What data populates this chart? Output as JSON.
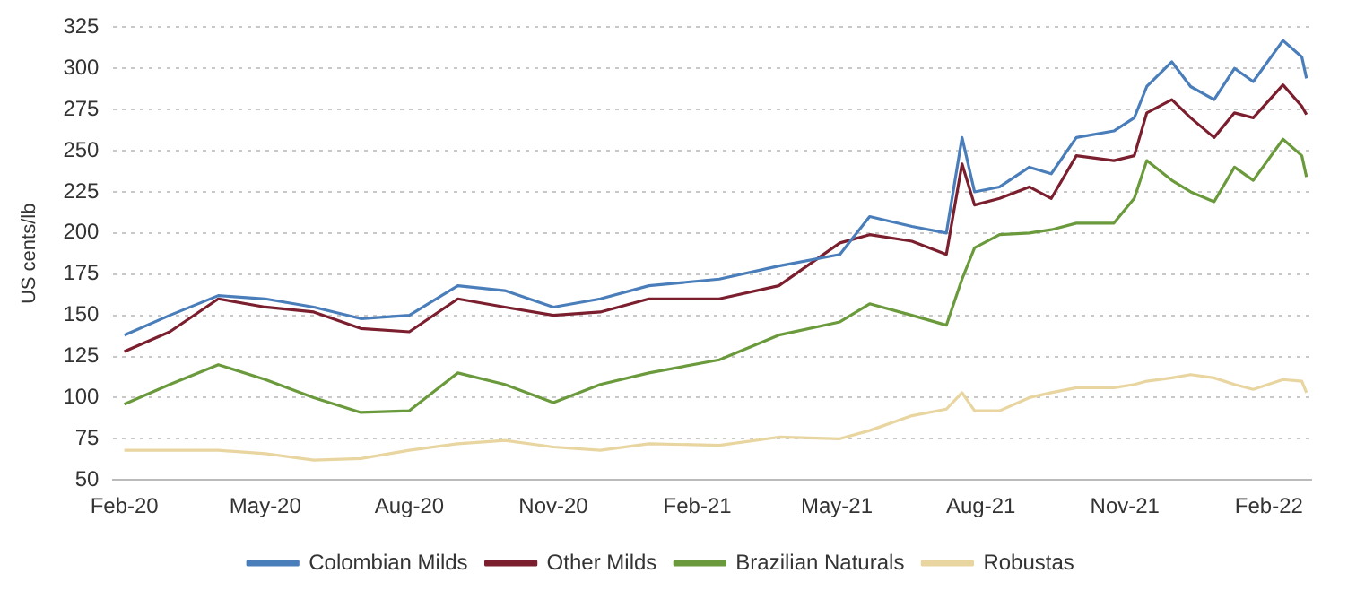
{
  "chart_data": {
    "type": "line",
    "ylabel": "US cents/lb",
    "legend": "bottom",
    "grid": "y",
    "marker": "none",
    "line_style": "solid",
    "x": [
      "2020-02-01",
      "2020-03-01",
      "2020-04-01",
      "2020-05-01",
      "2020-06-01",
      "2020-07-01",
      "2020-08-01",
      "2020-09-01",
      "2020-10-01",
      "2020-11-01",
      "2020-12-01",
      "2021-01-01",
      "2021-02-15",
      "2021-03-25",
      "2021-05-03",
      "2021-05-22",
      "2021-06-18",
      "2021-07-10",
      "2021-07-20",
      "2021-07-28",
      "2021-08-13",
      "2021-09-01",
      "2021-09-15",
      "2021-10-01",
      "2021-10-25",
      "2021-11-07",
      "2021-11-15",
      "2021-12-01",
      "2021-12-13",
      "2021-12-28",
      "2022-01-10",
      "2022-01-22",
      "2022-02-10",
      "2022-02-22",
      "2022-02-25"
    ],
    "xlim": [
      "2020-01-25",
      "2022-02-28"
    ],
    "xticks": [
      {
        "value": "2020-02-01",
        "label": "Feb-20"
      },
      {
        "value": "2020-05-01",
        "label": "May-20"
      },
      {
        "value": "2020-08-01",
        "label": "Aug-20"
      },
      {
        "value": "2020-11-01",
        "label": "Nov-20"
      },
      {
        "value": "2021-02-01",
        "label": "Feb-21"
      },
      {
        "value": "2021-05-01",
        "label": "May-21"
      },
      {
        "value": "2021-08-01",
        "label": "Aug-21"
      },
      {
        "value": "2021-11-01",
        "label": "Nov-21"
      },
      {
        "value": "2022-02-01",
        "label": "Feb-22"
      }
    ],
    "ylim": [
      50,
      325
    ],
    "yticks": [
      50,
      75,
      100,
      125,
      150,
      175,
      200,
      225,
      250,
      275,
      300,
      325
    ],
    "series": [
      {
        "name": "Colombian Milds",
        "color": "#4a7ebb",
        "values": [
          138,
          150,
          162,
          160,
          155,
          148,
          150,
          168,
          165,
          155,
          160,
          168,
          172,
          180,
          187,
          210,
          204,
          200,
          258,
          225,
          228,
          240,
          236,
          258,
          262,
          270,
          289,
          304,
          289,
          281,
          300,
          292,
          317,
          307,
          294
        ]
      },
      {
        "name": "Other Milds",
        "color": "#7b1f2f",
        "values": [
          128,
          140,
          160,
          155,
          152,
          142,
          140,
          160,
          155,
          150,
          152,
          160,
          160,
          168,
          194,
          199,
          195,
          187,
          242,
          217,
          221,
          228,
          221,
          247,
          244,
          247,
          273,
          281,
          270,
          258,
          273,
          270,
          290,
          277,
          272
        ]
      },
      {
        "name": "Brazilian Naturals",
        "color": "#6a9a3c",
        "values": [
          96,
          108,
          120,
          111,
          100,
          91,
          92,
          115,
          108,
          97,
          108,
          115,
          123,
          138,
          146,
          157,
          150,
          144,
          172,
          191,
          199,
          200,
          202,
          206,
          206,
          221,
          244,
          232,
          225,
          219,
          240,
          232,
          257,
          247,
          234
        ]
      },
      {
        "name": "Robustas",
        "color": "#e8d5a0",
        "values": [
          68,
          68,
          68,
          66,
          62,
          63,
          68,
          72,
          74,
          70,
          68,
          72,
          71,
          76,
          75,
          80,
          89,
          93,
          103,
          92,
          92,
          100,
          103,
          106,
          106,
          108,
          110,
          112,
          114,
          112,
          108,
          105,
          111,
          110,
          103
        ]
      }
    ]
  }
}
